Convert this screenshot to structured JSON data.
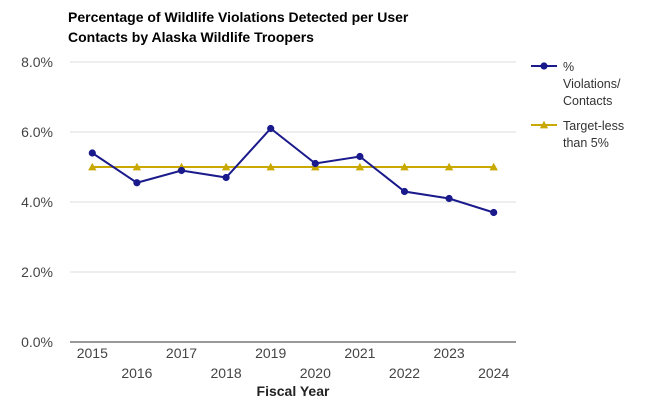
{
  "chart_data": {
    "type": "line",
    "title_lines": [
      "Percentage of Wildlife Violations Detected per User",
      "Contacts by Alaska Wildlife Troopers"
    ],
    "xlabel": "Fiscal Year",
    "ylabel": "",
    "x": [
      "2015",
      "2016",
      "2017",
      "2018",
      "2019",
      "2020",
      "2021",
      "2022",
      "2023",
      "2024"
    ],
    "ylim": [
      0,
      8
    ],
    "yticks": [
      {
        "value": 0,
        "label": "0.0%"
      },
      {
        "value": 2,
        "label": "2.0%"
      },
      {
        "value": 4,
        "label": "4.0%"
      },
      {
        "value": 6,
        "label": "6.0%"
      },
      {
        "value": 8,
        "label": "8.0%"
      }
    ],
    "grid": true,
    "legend_position": "right",
    "series": [
      {
        "name": "% Violations/ Contacts",
        "legend_lines": [
          "%",
          "Violations/",
          "Contacts"
        ],
        "color": "#1a1a8c",
        "marker": "circle",
        "values": [
          5.4,
          4.55,
          4.9,
          4.7,
          6.1,
          5.1,
          5.3,
          4.3,
          4.1,
          3.7
        ]
      },
      {
        "name": "Target-less than 5%",
        "legend_lines": [
          "Target-less",
          "than 5%"
        ],
        "color": "#c9a800",
        "marker": "triangle",
        "values": [
          5,
          5,
          5,
          5,
          5,
          5,
          5,
          5,
          5,
          5
        ]
      }
    ]
  }
}
